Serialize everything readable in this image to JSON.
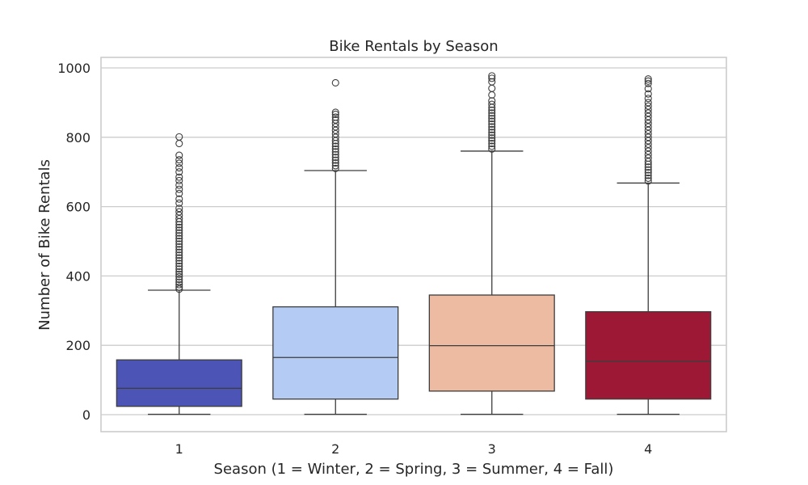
{
  "chart_data": {
    "type": "box",
    "title": "Bike Rentals by Season",
    "xlabel": "Season (1 = Winter, 2 = Spring, 3 = Summer, 4 = Fall)",
    "ylabel": "Number of Bike Rentals",
    "ylim": [
      -50,
      1030
    ],
    "yticks": [
      0,
      200,
      400,
      600,
      800,
      1000
    ],
    "categories": [
      "1",
      "2",
      "3",
      "4"
    ],
    "grid": true,
    "boxes": [
      {
        "category": "1",
        "color": "#4c55b5",
        "min": 1,
        "q1": 24,
        "median": 76,
        "q3": 158,
        "max": 359,
        "outliers": [
          362,
          368,
          375,
          382,
          390,
          398,
          405,
          412,
          420,
          428,
          436,
          444,
          452,
          460,
          468,
          476,
          484,
          492,
          500,
          508,
          516,
          524,
          532,
          540,
          548,
          556,
          565,
          575,
          585,
          595,
          610,
          622,
          638,
          650,
          662,
          675,
          685,
          700,
          712,
          725,
          735,
          748,
          782,
          801
        ]
      },
      {
        "category": "2",
        "color": "#b4cbf3",
        "min": 1,
        "q1": 45,
        "median": 165,
        "q3": 311,
        "max": 704,
        "outliers": [
          710,
          718,
          726,
          734,
          742,
          750,
          758,
          766,
          774,
          782,
          790,
          800,
          810,
          820,
          830,
          840,
          850,
          858,
          866,
          872,
          957
        ]
      },
      {
        "category": "3",
        "color": "#edbaa2",
        "min": 1,
        "q1": 68,
        "median": 199,
        "q3": 345,
        "max": 760,
        "outliers": [
          766,
          774,
          782,
          790,
          798,
          806,
          814,
          822,
          830,
          838,
          846,
          854,
          862,
          870,
          878,
          886,
          895,
          905,
          922,
          941,
          960,
          970,
          977
        ]
      },
      {
        "category": "4",
        "color": "#9d1834",
        "min": 1,
        "q1": 45,
        "median": 154,
        "q3": 297,
        "max": 668,
        "outliers": [
          674,
          682,
          690,
          698,
          706,
          714,
          722,
          730,
          740,
          750,
          760,
          770,
          780,
          790,
          800,
          810,
          820,
          830,
          840,
          850,
          860,
          870,
          880,
          890,
          900,
          912,
          925,
          940,
          955,
          962,
          968
        ]
      }
    ]
  }
}
